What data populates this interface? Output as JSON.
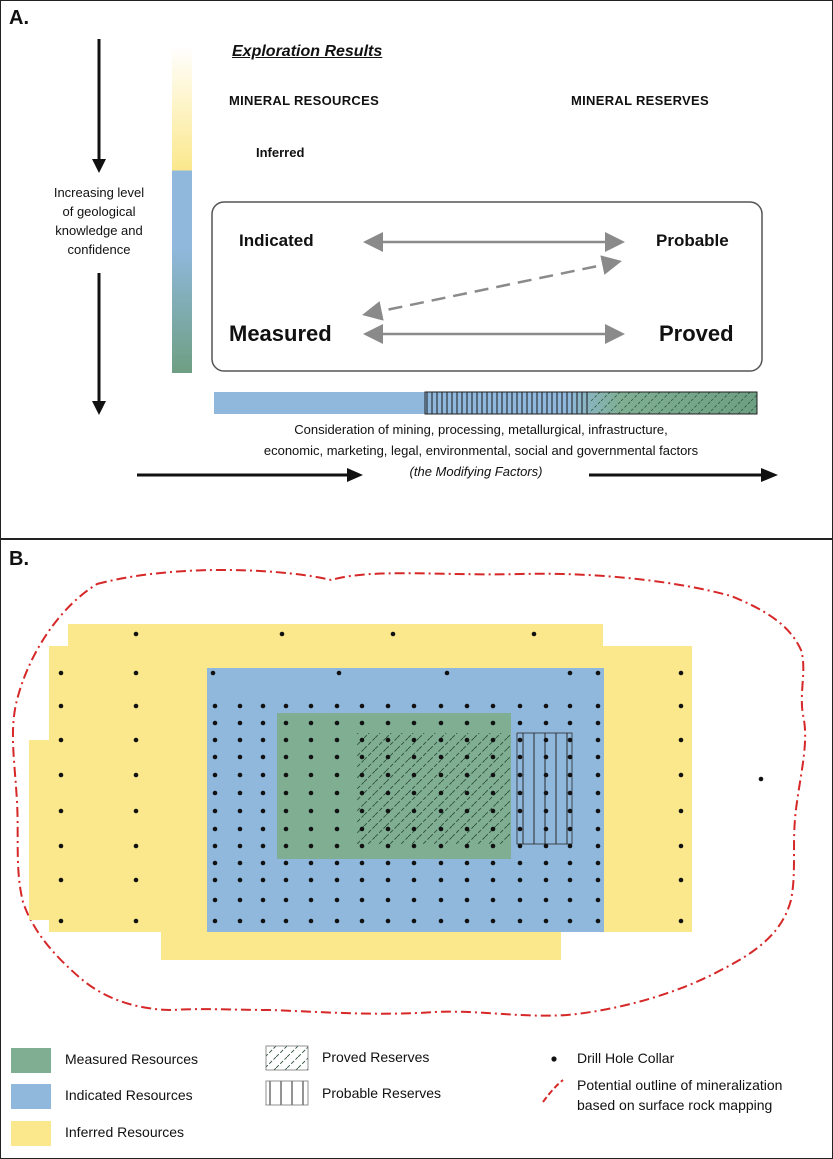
{
  "panel_a": {
    "label": "A.",
    "title": "Exploration Results",
    "resources_header": "MINERAL RESOURCES",
    "reserves_header": "MINERAL RESERVES",
    "inferred": "Inferred",
    "indicated": "Indicated",
    "measured": "Measured",
    "probable": "Probable",
    "proved": "Proved",
    "axis_label_lines": [
      "Increasing level",
      "of geological",
      "knowledge and",
      "confidence"
    ],
    "modifying_line1": "Consideration of mining, processing, metallurgical, infrastructure,",
    "modifying_line2": "economic, marketing, legal, environmental, social and governmental factors",
    "modifying_line3": "(the Modifying Factors)"
  },
  "panel_b": {
    "label": "B.",
    "legend": {
      "measured": "Measured Resources",
      "indicated": "Indicated Resources",
      "inferred": "Inferred Resources",
      "proved": "Proved Reserves",
      "probable": "Probable Reserves",
      "drill": "Drill Hole Collar",
      "outline_line1": "Potential outline of mineralization",
      "outline_line2": "based on surface rock mapping"
    }
  },
  "colors": {
    "measured": "#7fae92",
    "indicated": "#8fb8dc",
    "inferred": "#fbe88c",
    "outline": "#d62828",
    "arrow_grey": "#8a8a8a"
  }
}
